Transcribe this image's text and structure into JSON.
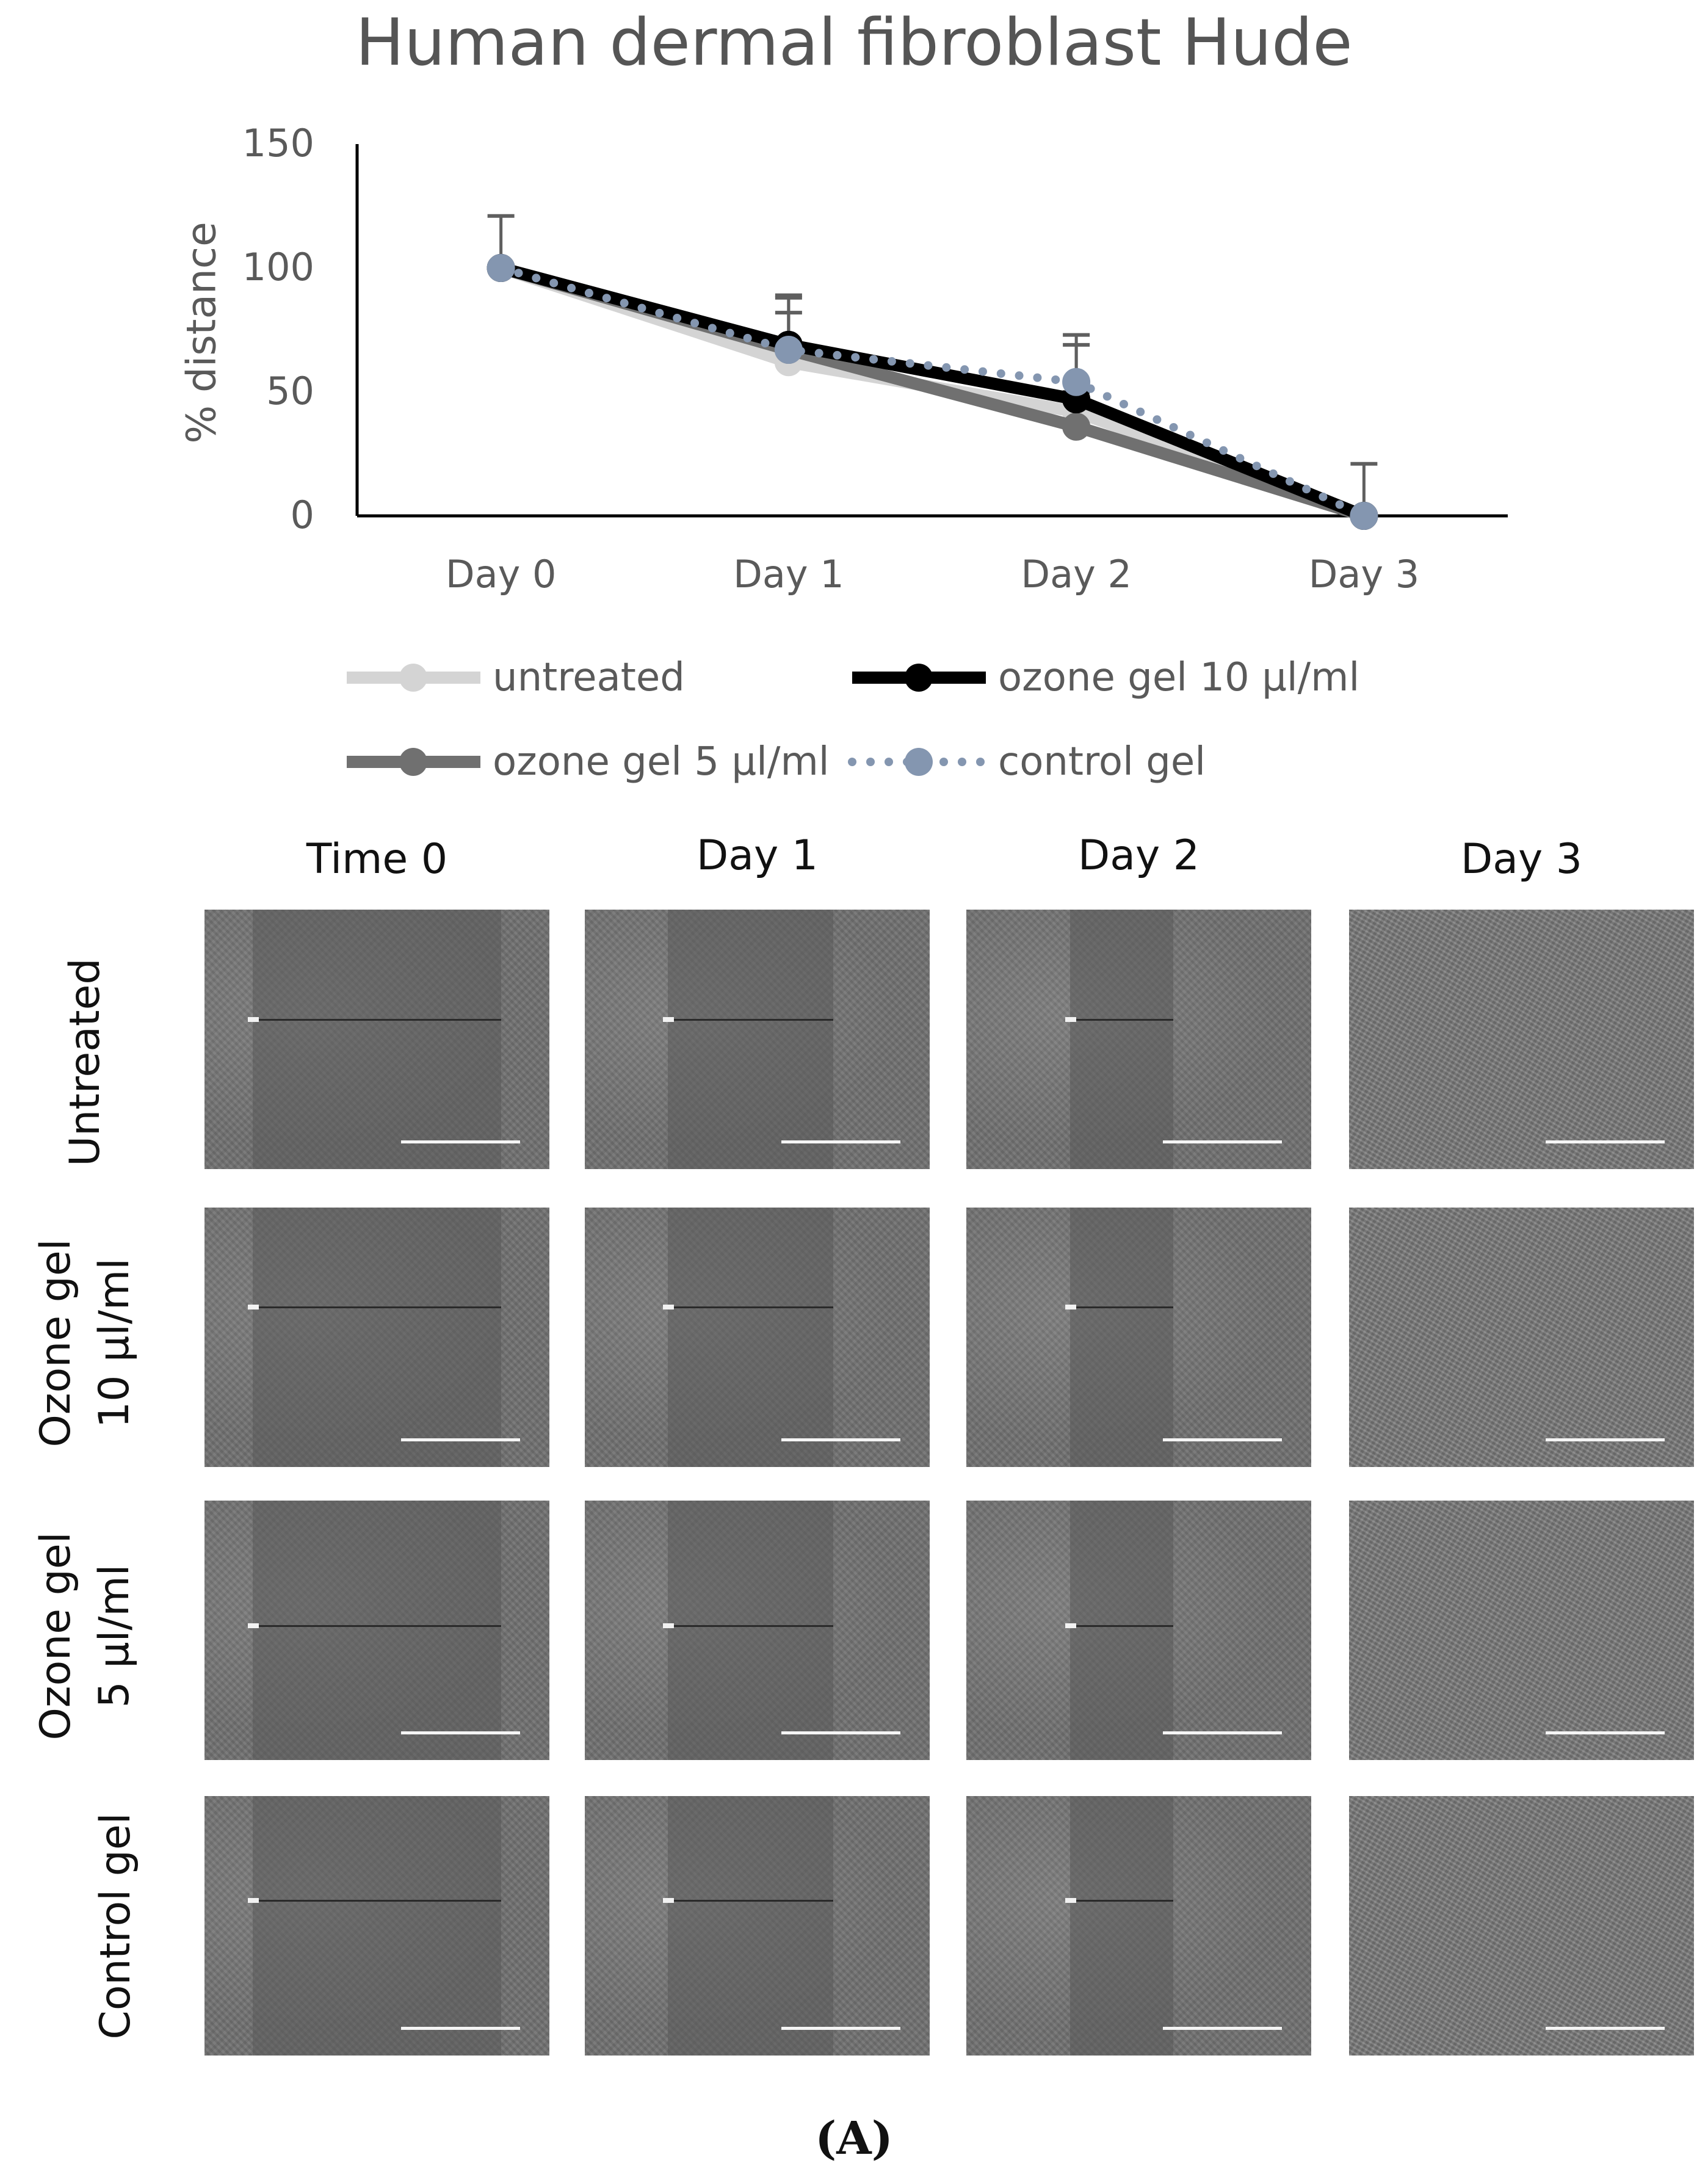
{
  "chart_data": {
    "type": "line",
    "title": "Human dermal fibroblast Hude",
    "xlabel": "",
    "ylabel": "% distance",
    "categories": [
      "Day 0",
      "Day 1",
      "Day 2",
      "Day 3"
    ],
    "ylim": [
      0,
      150
    ],
    "yticks": [
      0,
      50,
      100,
      150
    ],
    "legend_position": "bottom",
    "series": [
      {
        "name": "untreated",
        "values": [
          100,
          62,
          42,
          0
        ],
        "error": [
          0,
          0,
          0,
          0
        ],
        "color": "#d4d4d4",
        "style": "solid"
      },
      {
        "name": "ozone gel 10 µl/ml",
        "values": [
          100,
          69,
          47,
          0
        ],
        "error": [
          0,
          19,
          22,
          0
        ],
        "color": "#000000",
        "style": "solid"
      },
      {
        "name": "ozone gel 5 µl/ml",
        "values": [
          100,
          67,
          36,
          0
        ],
        "error": [
          0,
          15,
          14,
          0
        ],
        "color": "#707070",
        "style": "solid"
      },
      {
        "name": "control gel",
        "values": [
          100,
          67,
          54,
          0
        ],
        "error": [
          21,
          22,
          19,
          21
        ],
        "color": "#8496b0",
        "style": "dotted"
      }
    ]
  },
  "micrographs": {
    "column_headers": [
      "Time 0",
      "Day 1",
      "Day 2",
      "Day 3"
    ],
    "row_labels": [
      "Untreated",
      "Ozone gel\n10 µl/ml",
      "Ozone gel\n5 µl/ml",
      "Control gel"
    ]
  },
  "panel_label": "(A)"
}
